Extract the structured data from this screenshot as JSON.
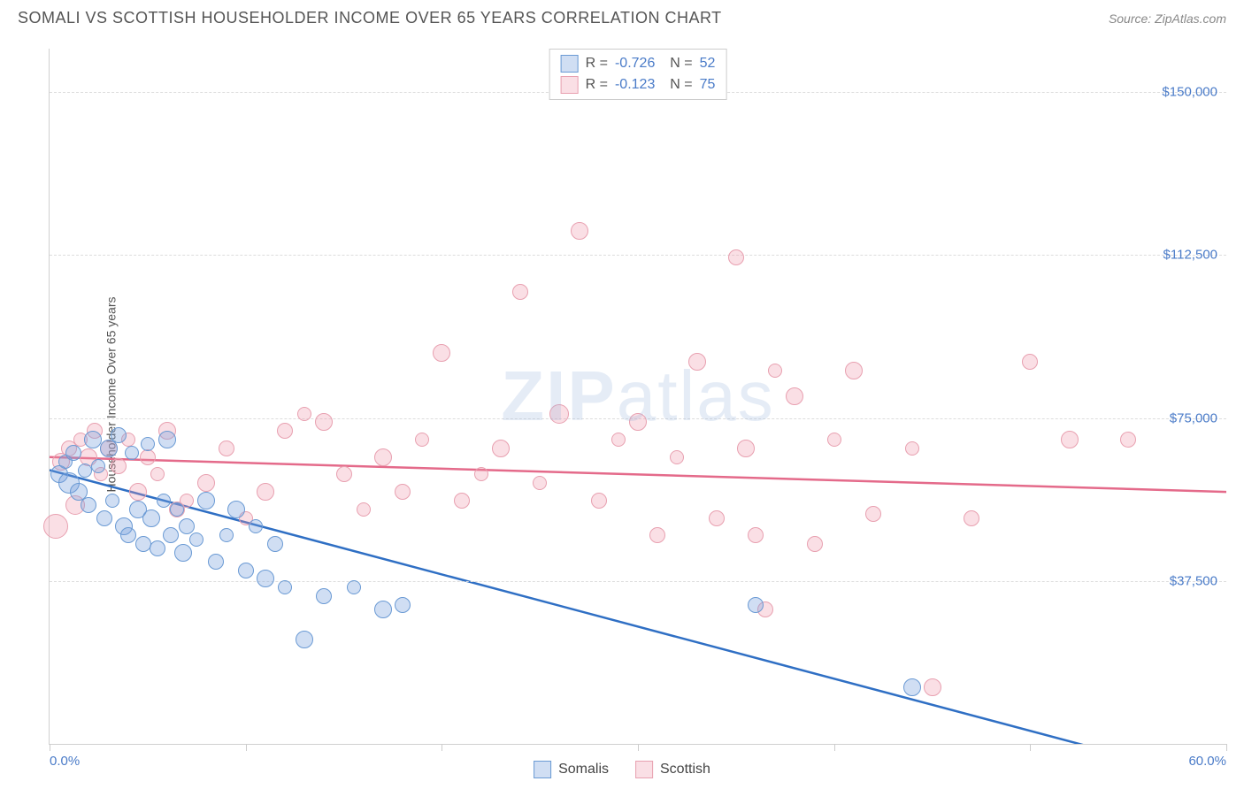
{
  "header": {
    "title": "SOMALI VS SCOTTISH HOUSEHOLDER INCOME OVER 65 YEARS CORRELATION CHART",
    "source": "Source: ZipAtlas.com"
  },
  "chart": {
    "type": "scatter",
    "y_axis_label": "Householder Income Over 65 years",
    "xlim": [
      0,
      60
    ],
    "ylim": [
      0,
      160000
    ],
    "x_tick_positions": [
      0,
      10,
      20,
      30,
      40,
      50,
      60
    ],
    "x_tick_labels_visible": {
      "0": "0.0%",
      "60": "60.0%"
    },
    "y_gridlines": [
      37500,
      75000,
      112500,
      150000
    ],
    "y_tick_labels": [
      "$37,500",
      "$75,000",
      "$112,500",
      "$150,000"
    ],
    "background_color": "#ffffff",
    "grid_color": "#dddddd",
    "axis_color": "#d0d0d0",
    "label_color": "#555555",
    "tick_label_color": "#4a7bc8",
    "watermark_text_bold": "ZIP",
    "watermark_text_light": "atlas",
    "watermark_color": "rgba(150,180,220,0.25)",
    "series": {
      "somalis": {
        "label": "Somalis",
        "fill_color": "rgba(120,160,220,0.35)",
        "stroke_color": "#6a9ad4",
        "trend_color": "#2f6fc4",
        "R": "-0.726",
        "N": "52",
        "trend_line": {
          "x1": 0,
          "y1": 63000,
          "x2": 55,
          "y2": -3000
        },
        "points": [
          {
            "x": 0.5,
            "y": 62000,
            "r": 10
          },
          {
            "x": 0.8,
            "y": 65000,
            "r": 8
          },
          {
            "x": 1.0,
            "y": 60000,
            "r": 12
          },
          {
            "x": 1.2,
            "y": 67000,
            "r": 9
          },
          {
            "x": 1.5,
            "y": 58000,
            "r": 10
          },
          {
            "x": 1.8,
            "y": 63000,
            "r": 8
          },
          {
            "x": 2.0,
            "y": 55000,
            "r": 9
          },
          {
            "x": 2.2,
            "y": 70000,
            "r": 10
          },
          {
            "x": 2.5,
            "y": 64000,
            "r": 8
          },
          {
            "x": 2.8,
            "y": 52000,
            "r": 9
          },
          {
            "x": 3.0,
            "y": 68000,
            "r": 10
          },
          {
            "x": 3.2,
            "y": 56000,
            "r": 8
          },
          {
            "x": 3.5,
            "y": 71000,
            "r": 9
          },
          {
            "x": 3.8,
            "y": 50000,
            "r": 10
          },
          {
            "x": 4.0,
            "y": 48000,
            "r": 9
          },
          {
            "x": 4.2,
            "y": 67000,
            "r": 8
          },
          {
            "x": 4.5,
            "y": 54000,
            "r": 10
          },
          {
            "x": 4.8,
            "y": 46000,
            "r": 9
          },
          {
            "x": 5.0,
            "y": 69000,
            "r": 8
          },
          {
            "x": 5.2,
            "y": 52000,
            "r": 10
          },
          {
            "x": 5.5,
            "y": 45000,
            "r": 9
          },
          {
            "x": 5.8,
            "y": 56000,
            "r": 8
          },
          {
            "x": 6.0,
            "y": 70000,
            "r": 10
          },
          {
            "x": 6.2,
            "y": 48000,
            "r": 9
          },
          {
            "x": 6.5,
            "y": 54000,
            "r": 8
          },
          {
            "x": 6.8,
            "y": 44000,
            "r": 10
          },
          {
            "x": 7.0,
            "y": 50000,
            "r": 9
          },
          {
            "x": 7.5,
            "y": 47000,
            "r": 8
          },
          {
            "x": 8.0,
            "y": 56000,
            "r": 10
          },
          {
            "x": 8.5,
            "y": 42000,
            "r": 9
          },
          {
            "x": 9.0,
            "y": 48000,
            "r": 8
          },
          {
            "x": 9.5,
            "y": 54000,
            "r": 10
          },
          {
            "x": 10.0,
            "y": 40000,
            "r": 9
          },
          {
            "x": 10.5,
            "y": 50000,
            "r": 8
          },
          {
            "x": 11.0,
            "y": 38000,
            "r": 10
          },
          {
            "x": 11.5,
            "y": 46000,
            "r": 9
          },
          {
            "x": 12.0,
            "y": 36000,
            "r": 8
          },
          {
            "x": 13.0,
            "y": 24000,
            "r": 10
          },
          {
            "x": 14.0,
            "y": 34000,
            "r": 9
          },
          {
            "x": 15.5,
            "y": 36000,
            "r": 8
          },
          {
            "x": 17.0,
            "y": 31000,
            "r": 10
          },
          {
            "x": 18.0,
            "y": 32000,
            "r": 9
          },
          {
            "x": 36.0,
            "y": 32000,
            "r": 9
          },
          {
            "x": 44.0,
            "y": 13000,
            "r": 10
          }
        ]
      },
      "scottish": {
        "label": "Scottish",
        "fill_color": "rgba(240,150,170,0.3)",
        "stroke_color": "#e8a0b0",
        "trend_color": "#e46a8a",
        "R": "-0.123",
        "N": "75",
        "trend_line": {
          "x1": 0,
          "y1": 66000,
          "x2": 60,
          "y2": 58000
        },
        "points": [
          {
            "x": 0.3,
            "y": 50000,
            "r": 14
          },
          {
            "x": 0.6,
            "y": 65000,
            "r": 10
          },
          {
            "x": 1.0,
            "y": 68000,
            "r": 9
          },
          {
            "x": 1.3,
            "y": 55000,
            "r": 11
          },
          {
            "x": 1.6,
            "y": 70000,
            "r": 8
          },
          {
            "x": 2.0,
            "y": 66000,
            "r": 10
          },
          {
            "x": 2.3,
            "y": 72000,
            "r": 9
          },
          {
            "x": 2.6,
            "y": 62000,
            "r": 8
          },
          {
            "x": 3.0,
            "y": 68000,
            "r": 10
          },
          {
            "x": 3.5,
            "y": 64000,
            "r": 9
          },
          {
            "x": 4.0,
            "y": 70000,
            "r": 8
          },
          {
            "x": 4.5,
            "y": 58000,
            "r": 10
          },
          {
            "x": 5.0,
            "y": 66000,
            "r": 9
          },
          {
            "x": 5.5,
            "y": 62000,
            "r": 8
          },
          {
            "x": 6.0,
            "y": 72000,
            "r": 10
          },
          {
            "x": 6.5,
            "y": 54000,
            "r": 9
          },
          {
            "x": 7.0,
            "y": 56000,
            "r": 8
          },
          {
            "x": 8.0,
            "y": 60000,
            "r": 10
          },
          {
            "x": 9.0,
            "y": 68000,
            "r": 9
          },
          {
            "x": 10.0,
            "y": 52000,
            "r": 8
          },
          {
            "x": 11.0,
            "y": 58000,
            "r": 10
          },
          {
            "x": 12.0,
            "y": 72000,
            "r": 9
          },
          {
            "x": 13.0,
            "y": 76000,
            "r": 8
          },
          {
            "x": 14.0,
            "y": 74000,
            "r": 10
          },
          {
            "x": 15.0,
            "y": 62000,
            "r": 9
          },
          {
            "x": 16.0,
            "y": 54000,
            "r": 8
          },
          {
            "x": 17.0,
            "y": 66000,
            "r": 10
          },
          {
            "x": 18.0,
            "y": 58000,
            "r": 9
          },
          {
            "x": 19.0,
            "y": 70000,
            "r": 8
          },
          {
            "x": 20.0,
            "y": 90000,
            "r": 10
          },
          {
            "x": 21.0,
            "y": 56000,
            "r": 9
          },
          {
            "x": 22.0,
            "y": 62000,
            "r": 8
          },
          {
            "x": 23.0,
            "y": 68000,
            "r": 10
          },
          {
            "x": 24.0,
            "y": 104000,
            "r": 9
          },
          {
            "x": 25.0,
            "y": 60000,
            "r": 8
          },
          {
            "x": 26.0,
            "y": 76000,
            "r": 11
          },
          {
            "x": 27.0,
            "y": 118000,
            "r": 10
          },
          {
            "x": 28.0,
            "y": 56000,
            "r": 9
          },
          {
            "x": 29.0,
            "y": 70000,
            "r": 8
          },
          {
            "x": 30.0,
            "y": 74000,
            "r": 10
          },
          {
            "x": 31.0,
            "y": 48000,
            "r": 9
          },
          {
            "x": 32.0,
            "y": 66000,
            "r": 8
          },
          {
            "x": 33.0,
            "y": 88000,
            "r": 10
          },
          {
            "x": 34.0,
            "y": 52000,
            "r": 9
          },
          {
            "x": 35.0,
            "y": 112000,
            "r": 9
          },
          {
            "x": 35.5,
            "y": 68000,
            "r": 10
          },
          {
            "x": 36.0,
            "y": 48000,
            "r": 9
          },
          {
            "x": 37.0,
            "y": 86000,
            "r": 8
          },
          {
            "x": 36.5,
            "y": 31000,
            "r": 9
          },
          {
            "x": 38.0,
            "y": 80000,
            "r": 10
          },
          {
            "x": 39.0,
            "y": 46000,
            "r": 9
          },
          {
            "x": 40.0,
            "y": 70000,
            "r": 8
          },
          {
            "x": 41.0,
            "y": 86000,
            "r": 10
          },
          {
            "x": 42.0,
            "y": 53000,
            "r": 9
          },
          {
            "x": 44.0,
            "y": 68000,
            "r": 8
          },
          {
            "x": 45.0,
            "y": 13000,
            "r": 10
          },
          {
            "x": 47.0,
            "y": 52000,
            "r": 9
          },
          {
            "x": 50.0,
            "y": 88000,
            "r": 9
          },
          {
            "x": 52.0,
            "y": 70000,
            "r": 10
          },
          {
            "x": 55.0,
            "y": 70000,
            "r": 9
          }
        ]
      }
    }
  },
  "stats_box": {
    "rows": [
      {
        "swatch_fill": "rgba(120,160,220,0.35)",
        "swatch_stroke": "#6a9ad4",
        "R": "-0.726",
        "N": "52"
      },
      {
        "swatch_fill": "rgba(240,150,170,0.3)",
        "swatch_stroke": "#e8a0b0",
        "R": "-0.123",
        "N": "75"
      }
    ]
  },
  "bottom_legend": {
    "items": [
      {
        "swatch_fill": "rgba(120,160,220,0.35)",
        "swatch_stroke": "#6a9ad4",
        "label": "Somalis"
      },
      {
        "swatch_fill": "rgba(240,150,170,0.3)",
        "swatch_stroke": "#e8a0b0",
        "label": "Scottish"
      }
    ]
  }
}
